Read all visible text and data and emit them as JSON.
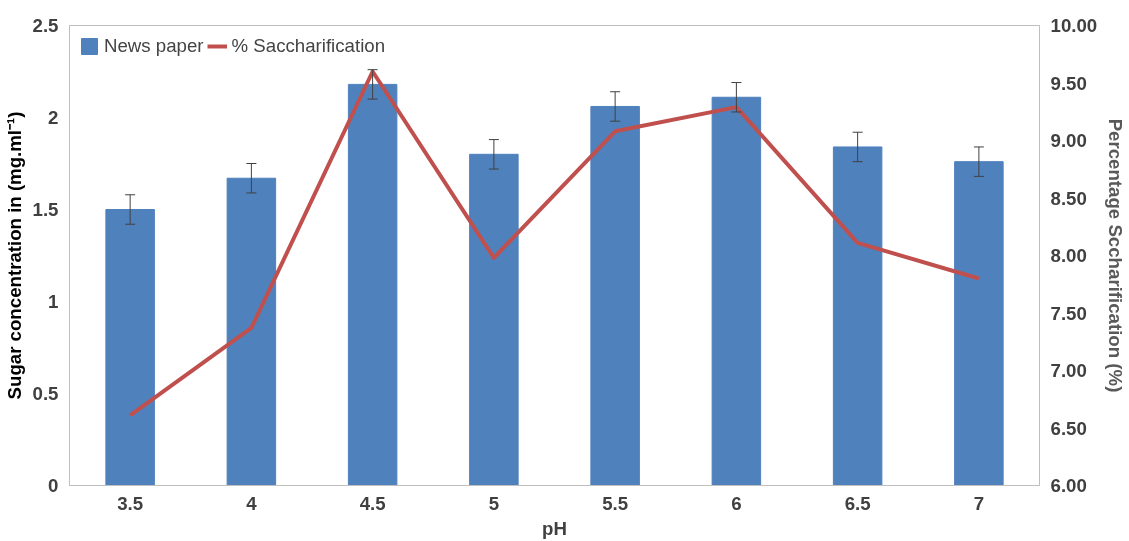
{
  "chart_data": {
    "type": "bar",
    "xlabel": "pH",
    "ylabel": "Sugar concentration in (mg.ml⁻¹)",
    "y2label": "Percentage Sccharification (%)",
    "categories": [
      "3.5",
      "4",
      "4.5",
      "5",
      "5.5",
      "6",
      "6.5",
      "7"
    ],
    "series": [
      {
        "name": "News paper",
        "color": "#4f81bd",
        "values": [
          1.5,
          1.67,
          2.18,
          1.8,
          2.06,
          2.11,
          1.84,
          1.76
        ],
        "errors": [
          0.08,
          0.08,
          0.08,
          0.08,
          0.08,
          0.08,
          0.08,
          0.08
        ]
      },
      {
        "name": "% Saccharification",
        "type": "line",
        "axis": "y2",
        "color": "#c0504d",
        "values": [
          6.61,
          7.37,
          9.6,
          7.98,
          9.08,
          9.29,
          8.11,
          7.8
        ]
      }
    ],
    "ylim": [
      0,
      2.5
    ],
    "yticks": [
      0,
      0.5,
      1,
      1.5,
      2,
      2.5
    ],
    "y2lim": [
      6,
      10
    ],
    "y2ticks": [
      {
        "value": 6,
        "label": "6.00"
      },
      {
        "value": 6.5,
        "label": "6.50"
      },
      {
        "value": 7,
        "label": "7.00"
      },
      {
        "value": 7.5,
        "label": "7.50"
      },
      {
        "value": 8,
        "label": "8.00"
      },
      {
        "value": 8.5,
        "label": "8.50"
      },
      {
        "value": 9,
        "label": "9.00"
      },
      {
        "value": 9.5,
        "label": "9.50"
      },
      {
        "value": 10,
        "label": "10.00"
      }
    ],
    "grid": false,
    "legend": "top left",
    "marker": "none",
    "line_style": "solid"
  }
}
